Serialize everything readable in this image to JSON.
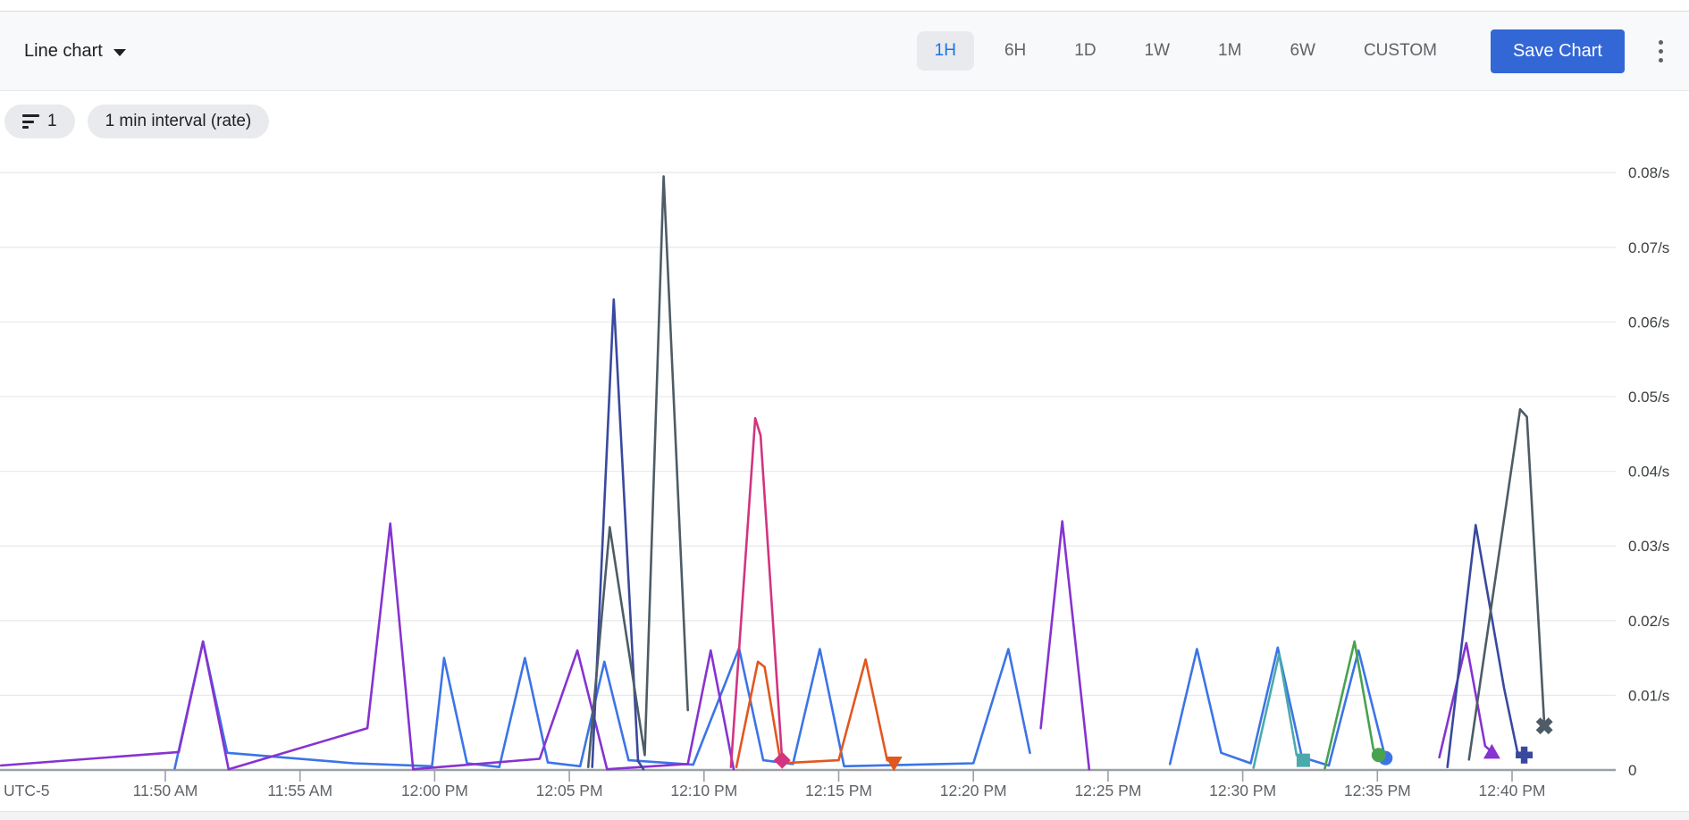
{
  "header": {
    "chart_type_label": "Line chart",
    "time_ranges": [
      "1H",
      "6H",
      "1D",
      "1W",
      "1M",
      "6W",
      "CUSTOM"
    ],
    "selected_range": "1H",
    "save_button_label": "Save Chart"
  },
  "filters": {
    "filter_count": "1",
    "interval_chip_label": "1 min interval (rate)"
  },
  "colors": {
    "accent_blue": "#1a73e8",
    "save_button_bg": "#3367d6",
    "selected_range_bg": "#e8eaed",
    "toolbar_bg": "#f8f9fa",
    "chip_bg": "#e9eaed",
    "gridline": "#e9e9e9",
    "axis": "#9aa0a6",
    "x_label_color": "#5f6368",
    "y_label_color": "#3c4043"
  },
  "chart_data": {
    "type": "line",
    "title": "",
    "legend": "none",
    "grid": "horizontal-only",
    "y_axis": {
      "unit": "/s",
      "side": "right",
      "range": [
        0,
        0.08
      ],
      "ticks": [
        {
          "v": 0.08,
          "label": "0.08/s"
        },
        {
          "v": 0.07,
          "label": "0.07/s"
        },
        {
          "v": 0.06,
          "label": "0.06/s"
        },
        {
          "v": 0.05,
          "label": "0.05/s"
        },
        {
          "v": 0.04,
          "label": "0.04/s"
        },
        {
          "v": 0.03,
          "label": "0.03/s"
        },
        {
          "v": 0.02,
          "label": "0.02/s"
        },
        {
          "v": 0.01,
          "label": "0.01/s"
        },
        {
          "v": 0,
          "label": "0"
        }
      ]
    },
    "x_axis": {
      "timezone_label": "UTC-5",
      "unit": "minutes_after_11:50AM",
      "ticks": [
        {
          "t": 0,
          "label": "11:50 AM"
        },
        {
          "t": 5,
          "label": "11:55 AM"
        },
        {
          "t": 10,
          "label": "12:00 PM"
        },
        {
          "t": 15,
          "label": "12:05 PM"
        },
        {
          "t": 20,
          "label": "12:10 PM"
        },
        {
          "t": 25,
          "label": "12:15 PM"
        },
        {
          "t": 30,
          "label": "12:20 PM"
        },
        {
          "t": 35,
          "label": "12:25 PM"
        },
        {
          "t": 40,
          "label": "12:30 PM"
        },
        {
          "t": 45,
          "label": "12:35 PM"
        },
        {
          "t": 50,
          "label": "12:40 PM"
        }
      ]
    },
    "series": [
      {
        "name": "blue",
        "color": "#3c74e7",
        "marker": "circle",
        "segments": [
          [
            [
              0.35,
              0.0002
            ],
            [
              1.4,
              0.0172
            ],
            [
              2.3,
              0.0023
            ],
            [
              7.0,
              0.0009
            ],
            [
              9.9,
              0.0005
            ],
            [
              10.35,
              0.015
            ],
            [
              11.2,
              0.0009
            ],
            [
              12.4,
              0.0004
            ],
            [
              13.35,
              0.015
            ],
            [
              14.2,
              0.001
            ],
            [
              15.4,
              0.0005
            ],
            [
              16.3,
              0.0145
            ],
            [
              17.2,
              0.0013
            ],
            [
              19.6,
              0.0007
            ],
            [
              21.3,
              0.0163
            ],
            [
              22.2,
              0.0013
            ],
            [
              23.3,
              0.0008
            ],
            [
              24.3,
              0.0162
            ],
            [
              25.2,
              0.0005
            ],
            [
              30.0,
              0.0009
            ],
            [
              31.3,
              0.0162
            ],
            [
              32.1,
              0.0023
            ]
          ],
          [
            [
              37.3,
              0.0008
            ],
            [
              38.3,
              0.0162
            ],
            [
              39.2,
              0.0023
            ],
            [
              40.3,
              0.0009
            ],
            [
              41.3,
              0.0164
            ],
            [
              42.2,
              0.0017
            ],
            [
              43.2,
              0.0006
            ],
            [
              44.3,
              0.016
            ],
            [
              45.3,
              0.0016
            ]
          ]
        ]
      },
      {
        "name": "purple",
        "color": "#8633d1",
        "marker": "triangle-up",
        "segments": [
          [
            [
              -6.1,
              0.0006
            ],
            [
              0.5,
              0.0024
            ],
            [
              1.4,
              0.0172
            ],
            [
              2.35,
              0.0001
            ],
            [
              7.5,
              0.0056
            ],
            [
              8.35,
              0.033
            ],
            [
              9.2,
              0.0001
            ],
            [
              13.9,
              0.0015
            ],
            [
              15.3,
              0.016
            ],
            [
              16.4,
              0.0001
            ],
            [
              19.4,
              0.0008
            ],
            [
              20.25,
              0.016
            ],
            [
              21.1,
              0.0001
            ]
          ],
          [
            [
              32.5,
              0.0056
            ],
            [
              33.3,
              0.0333
            ],
            [
              34.3,
              0.0001
            ]
          ],
          [
            [
              47.3,
              0.0017
            ],
            [
              48.3,
              0.017
            ],
            [
              49.0,
              0.0032
            ],
            [
              49.25,
              0.0024
            ]
          ]
        ]
      },
      {
        "name": "navy",
        "color": "#39499e",
        "marker": "plus",
        "segments": [
          [
            [
              15.85,
              0.0004
            ],
            [
              16.65,
              0.063
            ],
            [
              17.55,
              0.0012
            ],
            [
              17.75,
              0.0001
            ]
          ],
          [
            [
              47.6,
              0.0004
            ],
            [
              48.65,
              0.0328
            ],
            [
              49.7,
              0.011
            ],
            [
              50.2,
              0.0024
            ],
            [
              50.45,
              0.002
            ]
          ]
        ]
      },
      {
        "name": "slate-gray",
        "color": "#4d5c66",
        "marker": "x",
        "segments": [
          [
            [
              15.7,
              0.0004
            ],
            [
              16.5,
              0.0325
            ],
            [
              17.8,
              0.002
            ],
            [
              18.5,
              0.0795
            ],
            [
              19.4,
              0.008
            ]
          ],
          [
            [
              48.4,
              0.0014
            ],
            [
              50.3,
              0.0483
            ],
            [
              50.55,
              0.0473
            ],
            [
              51.2,
              0.0059
            ]
          ]
        ]
      },
      {
        "name": "orange",
        "color": "#e2571f",
        "marker": "triangle-down",
        "segments": [
          [
            [
              21.2,
              0.0004
            ],
            [
              22.0,
              0.0145
            ],
            [
              22.25,
              0.0138
            ],
            [
              22.85,
              0.0009
            ],
            [
              25.0,
              0.0013
            ],
            [
              26.0,
              0.0148
            ],
            [
              26.8,
              0.0013
            ],
            [
              27.05,
              0.0009
            ]
          ]
        ]
      },
      {
        "name": "pink",
        "color": "#d23480",
        "marker": "diamond",
        "segments": [
          [
            [
              21.0,
              0.0004
            ],
            [
              21.9,
              0.0471
            ],
            [
              22.1,
              0.0448
            ],
            [
              22.9,
              0.0013
            ]
          ]
        ]
      },
      {
        "name": "teal",
        "color": "#4ba9ad",
        "marker": "square",
        "segments": [
          [
            [
              40.4,
              0.0003
            ],
            [
              41.35,
              0.0155
            ],
            [
              42.0,
              0.002
            ],
            [
              42.25,
              0.0013
            ]
          ]
        ]
      },
      {
        "name": "green",
        "color": "#48a24f",
        "marker": "circle",
        "segments": [
          [
            [
              43.05,
              0.0002
            ],
            [
              44.15,
              0.0172
            ],
            [
              44.85,
              0.0028
            ],
            [
              45.05,
              0.002
            ]
          ]
        ]
      }
    ]
  }
}
